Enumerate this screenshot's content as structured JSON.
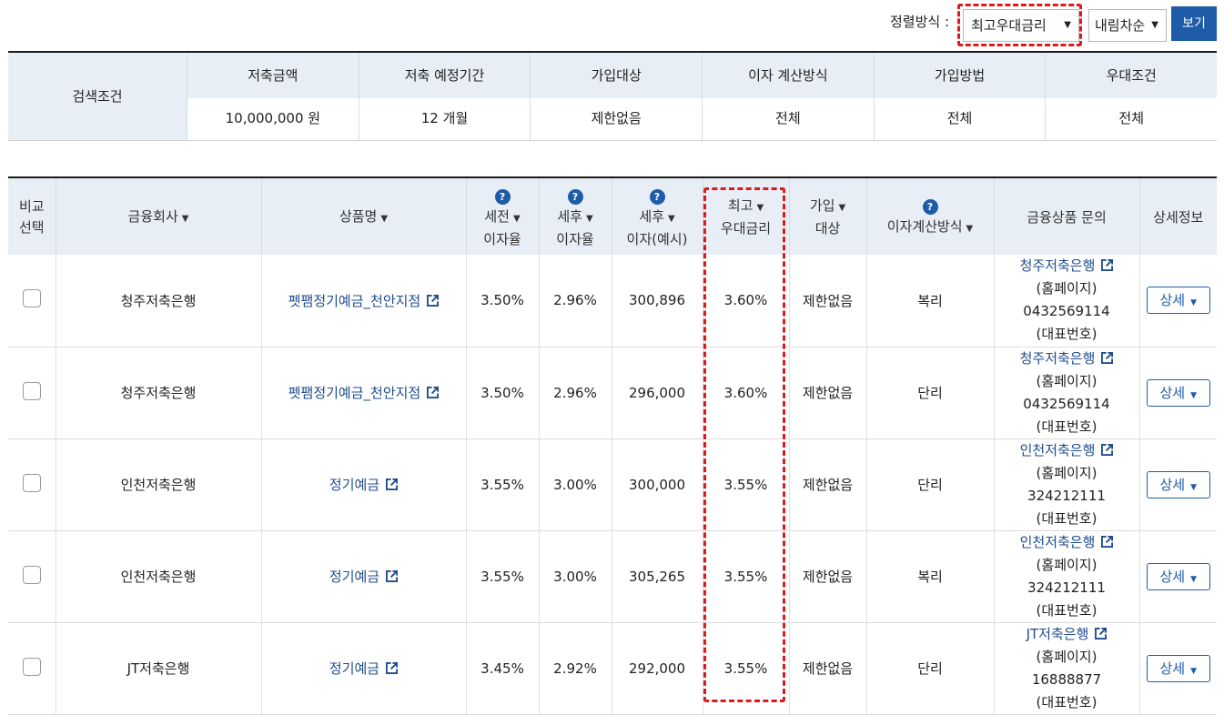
{
  "sort": {
    "label": "정렬방식 :",
    "field_value": "최고우대금리",
    "order_value": "내림차순",
    "view_button": "보기"
  },
  "conditions": {
    "title": "검색조건",
    "columns": [
      {
        "header": "저축금액",
        "value": "10,000,000 원"
      },
      {
        "header": "저축 예정기간",
        "value": "12 개월"
      },
      {
        "header": "가입대상",
        "value": "제한없음"
      },
      {
        "header": "이자 계산방식",
        "value": "전체"
      },
      {
        "header": "가입방법",
        "value": "전체"
      },
      {
        "header": "우대조건",
        "value": "전체"
      }
    ]
  },
  "table": {
    "headers": {
      "compare_line1": "비교",
      "compare_line2": "선택",
      "company": "금융회사",
      "product": "상품명",
      "pretax_line1": "세전",
      "pretax_line2": "이자율",
      "aftertax_line1": "세후",
      "aftertax_line2": "이자율",
      "interest_line1": "세후",
      "interest_line2": "이자(예시)",
      "maxrate_line1": "최고",
      "maxrate_line2": "우대금리",
      "target_line1": "가입",
      "target_line2": "대상",
      "calc": "이자계산방식",
      "inquiry": "금융상품 문의",
      "detail": "상세정보",
      "help_glyph": "?"
    },
    "rows": [
      {
        "company": "청주저축은행",
        "product": "펫팸정기예금_천안지점",
        "pretax": "3.50%",
        "aftertax": "2.96%",
        "interest": "300,896",
        "maxrate": "3.60%",
        "target": "제한없음",
        "calc": "복리",
        "inq_name": "청주저축은행",
        "inq_home": "(홈페이지)",
        "inq_phone": "0432569114",
        "inq_phone_label": "(대표번호)",
        "detail": "상세"
      },
      {
        "company": "청주저축은행",
        "product": "펫팸정기예금_천안지점",
        "pretax": "3.50%",
        "aftertax": "2.96%",
        "interest": "296,000",
        "maxrate": "3.60%",
        "target": "제한없음",
        "calc": "단리",
        "inq_name": "청주저축은행",
        "inq_home": "(홈페이지)",
        "inq_phone": "0432569114",
        "inq_phone_label": "(대표번호)",
        "detail": "상세"
      },
      {
        "company": "인천저축은행",
        "product": "정기예금",
        "pretax": "3.55%",
        "aftertax": "3.00%",
        "interest": "300,000",
        "maxrate": "3.55%",
        "target": "제한없음",
        "calc": "단리",
        "inq_name": "인천저축은행",
        "inq_home": "(홈페이지)",
        "inq_phone": "324212111",
        "inq_phone_label": "(대표번호)",
        "detail": "상세"
      },
      {
        "company": "인천저축은행",
        "product": "정기예금",
        "pretax": "3.55%",
        "aftertax": "3.00%",
        "interest": "305,265",
        "maxrate": "3.55%",
        "target": "제한없음",
        "calc": "복리",
        "inq_name": "인천저축은행",
        "inq_home": "(홈페이지)",
        "inq_phone": "324212111",
        "inq_phone_label": "(대표번호)",
        "detail": "상세"
      },
      {
        "company": "JT저축은행",
        "product": "정기예금",
        "pretax": "3.45%",
        "aftertax": "2.92%",
        "interest": "292,000",
        "maxrate": "3.55%",
        "target": "제한없음",
        "calc": "단리",
        "inq_name": "JT저축은행",
        "inq_home": "(홈페이지)",
        "inq_phone": "16888877",
        "inq_phone_label": "(대표번호)",
        "detail": "상세"
      }
    ]
  },
  "colors": {
    "accent": "#1f5ca8",
    "header_bg": "#e8eef5",
    "highlight": "#e0181b"
  }
}
